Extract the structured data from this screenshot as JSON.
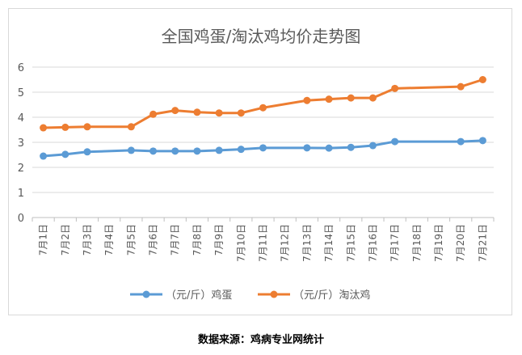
{
  "chart_data": {
    "type": "line",
    "title": "全国鸡蛋/淘汰鸡均价走势图",
    "categories": [
      "7月1日",
      "7月2日",
      "7月3日",
      "7月4日",
      "7月5日",
      "7月6日",
      "7月7日",
      "7月8日",
      "7月9日",
      "7月10日",
      "7月11日",
      "7月12日",
      "7月13日",
      "7月14日",
      "7月15日",
      "7月16日",
      "7月17日",
      "7月18日",
      "7月19日",
      "7月20日",
      "7月21日"
    ],
    "series": [
      {
        "name": "（元/斤）鸡蛋",
        "color": "#5b9bd5",
        "values": [
          2.45,
          2.52,
          2.62,
          null,
          2.68,
          2.65,
          2.65,
          2.65,
          2.68,
          2.72,
          2.78,
          null,
          2.78,
          2.77,
          2.8,
          2.87,
          3.03,
          null,
          null,
          3.03,
          3.07
        ]
      },
      {
        "name": "（元/斤）淘汰鸡",
        "color": "#ed7d31",
        "values": [
          3.58,
          3.6,
          3.62,
          null,
          3.62,
          4.12,
          4.27,
          4.2,
          4.17,
          4.17,
          4.38,
          null,
          4.67,
          4.72,
          4.77,
          4.77,
          5.15,
          null,
          null,
          5.22,
          5.5
        ]
      }
    ],
    "ylim": [
      0,
      6
    ],
    "yticks": [
      0,
      1,
      2,
      3,
      4,
      5,
      6
    ],
    "grid": true,
    "legend": "bottom"
  },
  "footer": {
    "source": "数据来源：鸡病专业网统计"
  }
}
